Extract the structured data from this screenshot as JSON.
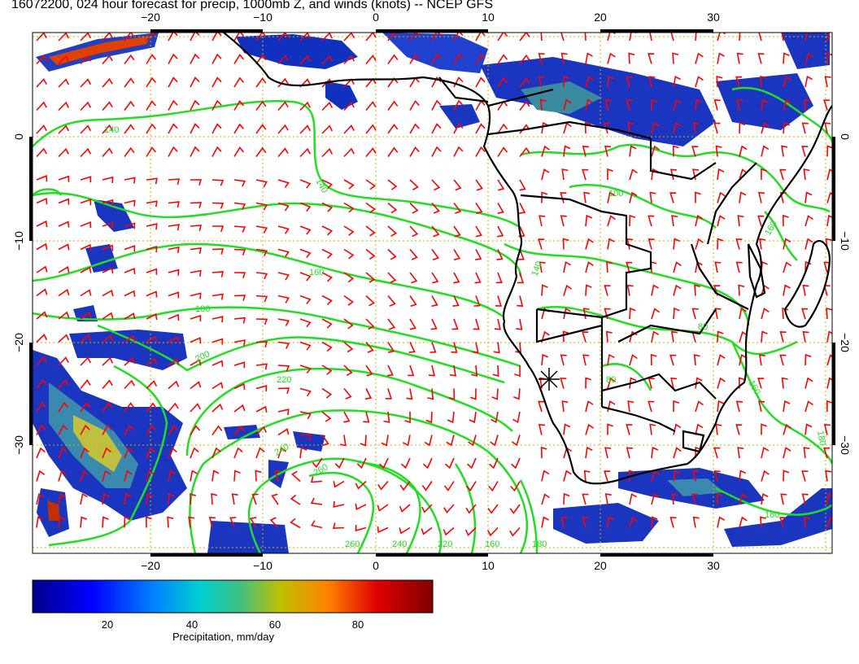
{
  "title": "16072200, 024 hour forecast for precip, 1000mb Z, and winds (knots) -- NCEP GFS",
  "axes": {
    "lon_ticks_top": [
      "−20",
      "−10",
      "0",
      "10",
      "20",
      "30"
    ],
    "lon_ticks_bottom": [
      "−20",
      "−10",
      "0",
      "10",
      "20",
      "30"
    ],
    "lat_ticks_left": [
      "0",
      "−10",
      "−20",
      "−30"
    ],
    "lat_ticks_right": [
      "0",
      "−10",
      "−20",
      "−30"
    ],
    "lon_range": [
      -30,
      41
    ],
    "lat_range": [
      -41,
      11
    ]
  },
  "contours": {
    "color": "#22dd22",
    "labels": [
      "140",
      "140",
      "160",
      "180",
      "200",
      "220",
      "240",
      "260",
      "260",
      "240",
      "220",
      "160",
      "180",
      "100",
      "140",
      "160",
      "160",
      "80",
      "80",
      "180",
      "160"
    ]
  },
  "colorbar": {
    "ticks": [
      "20",
      "40",
      "60",
      "80"
    ],
    "range": [
      0,
      100
    ],
    "label": "Precipitation, mm/day",
    "colors": [
      "#00008b",
      "#0000ff",
      "#0080ff",
      "#00d0d0",
      "#40c080",
      "#c0c000",
      "#ff8000",
      "#e00000",
      "#800000"
    ]
  },
  "colors": {
    "wind_barbs": "#ff0000",
    "coastline": "#000000",
    "grid": "#d4b000"
  }
}
